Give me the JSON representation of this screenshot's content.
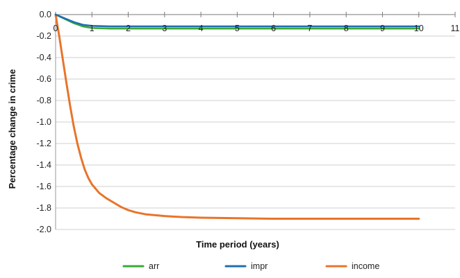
{
  "chart_data": {
    "type": "line",
    "xlabel": "Time period (years)",
    "ylabel": "Percentage change in crime",
    "xlim": [
      0,
      11
    ],
    "ylim": [
      -2.0,
      0.0
    ],
    "x_ticks": [
      "0",
      "1",
      "2",
      "3",
      "4",
      "5",
      "6",
      "7",
      "8",
      "9",
      "10",
      "11"
    ],
    "y_ticks": [
      "0.0",
      "-0.2",
      "-0.4",
      "-0.6",
      "-0.8",
      "-1.0",
      "-1.2",
      "-1.4",
      "-1.6",
      "-1.8",
      "-2.0"
    ],
    "grid": "horizontal",
    "legend_position": "bottom",
    "series": [
      {
        "name": "arr",
        "color": "#3aaa35",
        "x": [
          0,
          0.25,
          0.5,
          0.75,
          1,
          1.5,
          2,
          3,
          4,
          5,
          6,
          7,
          8,
          9,
          10
        ],
        "y": [
          0,
          -0.04,
          -0.08,
          -0.11,
          -0.125,
          -0.13,
          -0.13,
          -0.13,
          -0.13,
          -0.13,
          -0.13,
          -0.13,
          -0.13,
          -0.13,
          -0.13
        ]
      },
      {
        "name": "impr",
        "color": "#1f6fb2",
        "x": [
          0,
          0.25,
          0.5,
          0.75,
          1,
          1.5,
          2,
          3,
          4,
          5,
          6,
          7,
          8,
          9,
          10
        ],
        "y": [
          0,
          -0.035,
          -0.07,
          -0.095,
          -0.105,
          -0.11,
          -0.11,
          -0.11,
          -0.11,
          -0.11,
          -0.11,
          -0.11,
          -0.11,
          -0.11,
          -0.11
        ]
      },
      {
        "name": "income",
        "color": "#e8742a",
        "x": [
          0,
          0.1,
          0.2,
          0.3,
          0.4,
          0.5,
          0.6,
          0.7,
          0.8,
          0.9,
          1.0,
          1.2,
          1.4,
          1.6,
          1.8,
          2.0,
          2.2,
          2.5,
          3.0,
          3.5,
          4,
          5,
          6,
          7,
          8,
          9,
          10
        ],
        "y": [
          0,
          -0.2,
          -0.42,
          -0.64,
          -0.85,
          -1.04,
          -1.2,
          -1.33,
          -1.44,
          -1.52,
          -1.58,
          -1.66,
          -1.71,
          -1.75,
          -1.79,
          -1.82,
          -1.84,
          -1.86,
          -1.875,
          -1.885,
          -1.89,
          -1.895,
          -1.9,
          -1.9,
          -1.9,
          -1.9,
          -1.9
        ]
      }
    ]
  }
}
